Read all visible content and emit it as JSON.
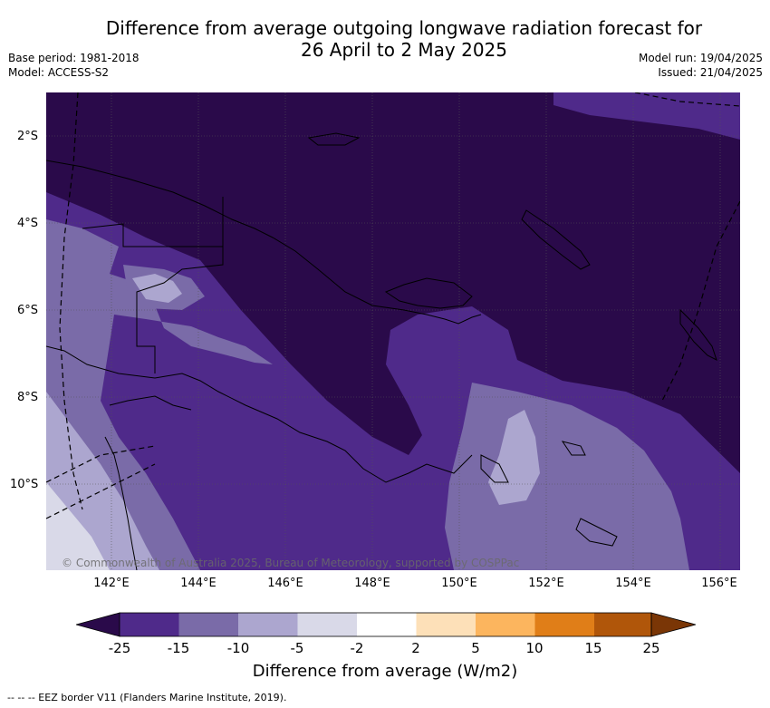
{
  "header": {
    "title_line1": "Difference from average outgoing longwave radiation forecast for",
    "title_line2": "26 April to 2 May 2025",
    "base_period": "Base period: 1981-2018",
    "model": "Model: ACCESS-S2",
    "model_run": "Model run: 19/04/2025",
    "issued": "Issued: 21/04/2025"
  },
  "map": {
    "copyright": "© Commonwealth of Australia 2025, Bureau of Meteorology, supported by COSPPac",
    "lat_labels": [
      "2°S",
      "4°S",
      "6°S",
      "8°S",
      "10°S"
    ],
    "lon_labels": [
      "142°E",
      "144°E",
      "146°E",
      "148°E",
      "150°E",
      "152°E",
      "154°E",
      "156°E"
    ]
  },
  "colorbar": {
    "title": "Difference from average (W/m2)",
    "ticks": [
      "-25",
      "-15",
      "-10",
      "-5",
      "-2",
      "2",
      "5",
      "10",
      "15",
      "25"
    ],
    "colors": {
      "lt_-25": "#2a0a4a",
      "-25_-15": "#4f2a8a",
      "-15_-10": "#7a6ba8",
      "-10_-5": "#aca6cf",
      "-5_-2": "#d9d9e8",
      "-2_2": "#ffffff",
      "2_5": "#fde0b8",
      "5_10": "#fcb55e",
      "10_15": "#e07e18",
      "15_25": "#b0560a",
      "gt_25": "#7a3606"
    }
  },
  "footer": {
    "legend_text": "--  --  -- EEZ border V11 (Flanders Marine Institute, 2019)."
  }
}
